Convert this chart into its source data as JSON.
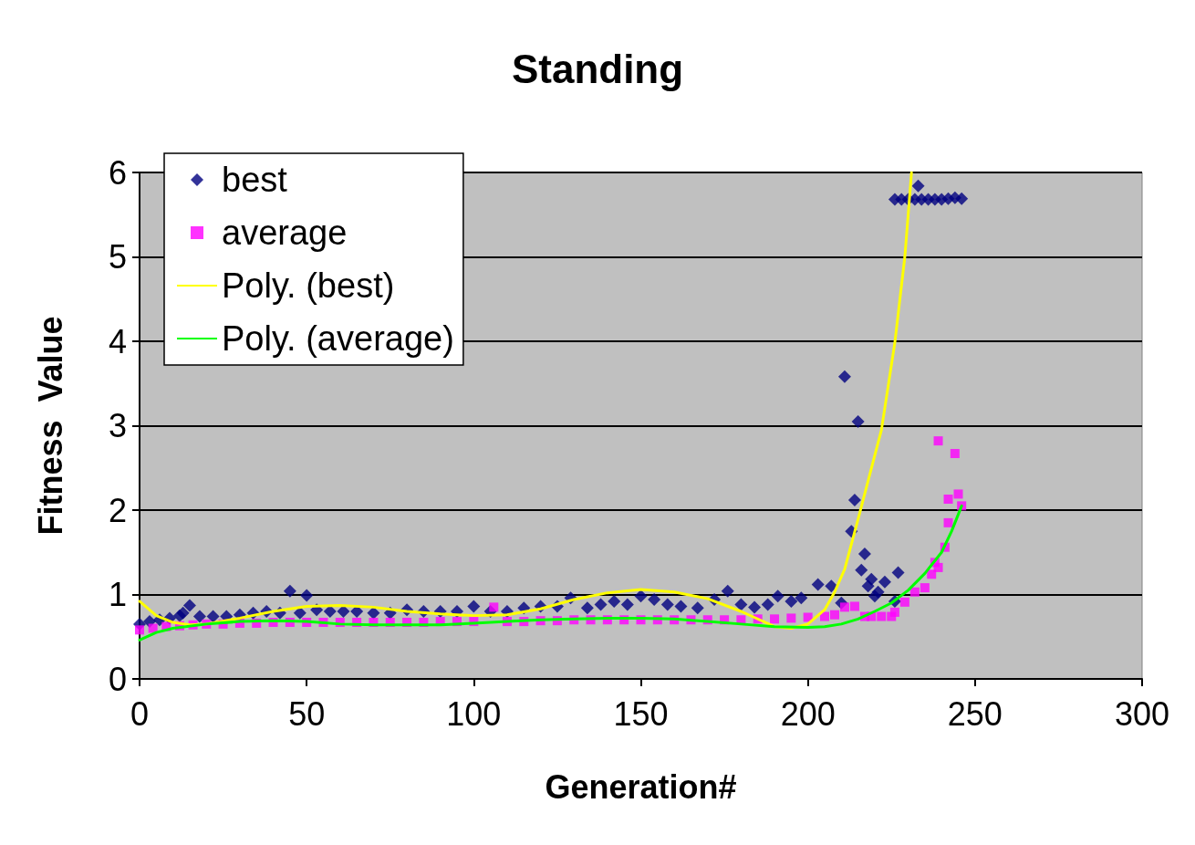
{
  "chart_data": {
    "type": "scatter",
    "title": "Standing",
    "xlabel": "Generation#",
    "ylabel": "Fitness  Value",
    "xlim": [
      0,
      300
    ],
    "xticks": [
      0,
      50,
      100,
      150,
      200,
      250,
      300
    ],
    "ylim": [
      0,
      6
    ],
    "yticks": [
      0,
      1,
      2,
      3,
      4,
      5,
      6
    ],
    "grid": "y",
    "legend": "top left",
    "series": [
      {
        "name": "best",
        "marker": "diamond",
        "color": "#000080",
        "x": [
          0,
          3,
          6,
          9,
          12,
          13,
          15,
          18,
          22,
          26,
          30,
          34,
          38,
          42,
          45,
          48,
          50,
          53,
          57,
          61,
          65,
          70,
          75,
          80,
          85,
          90,
          95,
          100,
          105,
          110,
          115,
          120,
          125,
          129,
          134,
          138,
          142,
          146,
          150,
          154,
          158,
          162,
          167,
          172,
          176,
          180,
          184,
          188,
          191,
          195,
          198,
          203,
          207,
          210,
          211,
          213,
          214,
          215,
          216,
          217,
          218,
          219,
          220,
          221,
          223,
          226,
          227,
          226,
          228,
          230,
          232,
          233,
          234,
          236,
          238,
          240,
          242,
          244,
          246
        ],
        "values": [
          0.65,
          0.68,
          0.7,
          0.72,
          0.75,
          0.78,
          0.87,
          0.74,
          0.74,
          0.74,
          0.76,
          0.78,
          0.8,
          0.78,
          1.04,
          0.78,
          0.99,
          0.82,
          0.8,
          0.8,
          0.8,
          0.78,
          0.78,
          0.82,
          0.8,
          0.8,
          0.8,
          0.86,
          0.8,
          0.8,
          0.84,
          0.86,
          0.86,
          0.96,
          0.84,
          0.88,
          0.92,
          0.88,
          0.98,
          0.94,
          0.88,
          0.86,
          0.84,
          0.94,
          1.04,
          0.88,
          0.85,
          0.88,
          0.98,
          0.92,
          0.96,
          1.12,
          1.1,
          0.9,
          3.58,
          1.75,
          2.12,
          3.05,
          1.29,
          1.48,
          1.1,
          1.18,
          0.98,
          1.03,
          1.15,
          0.92,
          1.26,
          5.68,
          5.68,
          5.68,
          5.68,
          5.84,
          5.68,
          5.68,
          5.68,
          5.68,
          5.69,
          5.7,
          5.69
        ]
      },
      {
        "name": "average",
        "marker": "square",
        "color": "#ff00ff",
        "x": [
          0,
          4,
          8,
          12,
          16,
          20,
          25,
          30,
          35,
          40,
          45,
          50,
          55,
          60,
          65,
          70,
          75,
          80,
          85,
          90,
          95,
          100,
          106,
          110,
          115,
          120,
          125,
          130,
          135,
          140,
          145,
          150,
          155,
          160,
          165,
          170,
          175,
          180,
          185,
          190,
          195,
          200,
          205,
          208,
          211,
          214,
          217,
          219,
          222,
          225,
          226,
          229,
          232,
          235,
          237,
          238,
          239,
          239,
          241,
          242,
          242,
          244,
          245,
          246
        ],
        "values": [
          0.58,
          0.6,
          0.62,
          0.63,
          0.64,
          0.65,
          0.65,
          0.66,
          0.66,
          0.67,
          0.67,
          0.67,
          0.67,
          0.67,
          0.67,
          0.67,
          0.67,
          0.67,
          0.67,
          0.68,
          0.68,
          0.68,
          0.85,
          0.68,
          0.68,
          0.69,
          0.69,
          0.7,
          0.7,
          0.7,
          0.7,
          0.7,
          0.7,
          0.7,
          0.7,
          0.7,
          0.7,
          0.7,
          0.71,
          0.71,
          0.72,
          0.73,
          0.74,
          0.76,
          0.85,
          0.86,
          0.74,
          0.74,
          0.74,
          0.74,
          0.79,
          0.91,
          1.03,
          1.08,
          1.24,
          1.38,
          1.32,
          2.82,
          1.56,
          1.85,
          2.13,
          2.67,
          2.19,
          2.05
        ]
      },
      {
        "name": "Poly. (best)",
        "type": "line",
        "marker": "none",
        "color": "#ffff00",
        "x": [
          0,
          5,
          10,
          15,
          20,
          30,
          40,
          50,
          60,
          70,
          80,
          90,
          100,
          110,
          120,
          130,
          140,
          150,
          160,
          170,
          180,
          190,
          195,
          200,
          205,
          208,
          211,
          215,
          222,
          226,
          229,
          231
        ],
        "values": [
          0.92,
          0.75,
          0.67,
          0.64,
          0.65,
          0.72,
          0.8,
          0.86,
          0.87,
          0.85,
          0.8,
          0.77,
          0.75,
          0.76,
          0.83,
          0.94,
          1.02,
          1.06,
          1.03,
          0.95,
          0.8,
          0.62,
          0.6,
          0.65,
          0.82,
          1.03,
          1.3,
          1.89,
          2.95,
          3.98,
          5.0,
          6.0
        ]
      },
      {
        "name": "Poly. (average)",
        "type": "line",
        "marker": "none",
        "color": "#00ff00",
        "x": [
          0,
          5,
          10,
          20,
          30,
          40,
          50,
          60,
          70,
          80,
          90,
          100,
          110,
          120,
          130,
          140,
          150,
          160,
          170,
          180,
          190,
          200,
          205,
          210,
          215,
          220,
          225,
          230,
          235,
          240,
          243,
          246
        ],
        "values": [
          0.46,
          0.55,
          0.6,
          0.65,
          0.68,
          0.69,
          0.68,
          0.65,
          0.64,
          0.64,
          0.64,
          0.66,
          0.68,
          0.7,
          0.71,
          0.72,
          0.72,
          0.71,
          0.68,
          0.65,
          0.62,
          0.61,
          0.62,
          0.65,
          0.71,
          0.8,
          0.9,
          1.05,
          1.25,
          1.5,
          1.75,
          2.05
        ]
      }
    ]
  }
}
